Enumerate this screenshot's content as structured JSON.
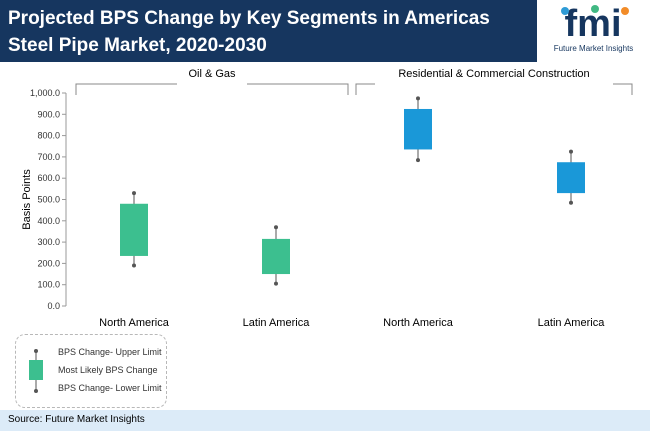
{
  "header": {
    "title": "Projected BPS Change by Key Segments in Americas Steel Pipe Market, 2020-2030"
  },
  "logo": {
    "letters": "fmi",
    "tagline": "Future Market Insights",
    "letter_colors": [
      "#2e9bd6",
      "#41b883",
      "#f28c28"
    ]
  },
  "colors": {
    "header_bg": "#16365f",
    "footer_bg": "#dcebf8",
    "oil_gas_box": "#3cbf8f",
    "residential_box": "#1a98d8",
    "whisker": "#555555"
  },
  "chart_data": {
    "type": "box",
    "ylabel": "Basis Points",
    "ylim": [
      0,
      1000
    ],
    "yticks": [
      "0.0",
      "100.0",
      "200.0",
      "300.0",
      "400.0",
      "500.0",
      "600.0",
      "700.0",
      "800.0",
      "900.0",
      "1,000.0"
    ],
    "grid": false,
    "groups": [
      {
        "name": "Oil & Gas",
        "color": "#3cbf8f",
        "items": [
          {
            "label": "North America",
            "upper": 530,
            "box_high": 480,
            "box_low": 235,
            "lower": 190
          },
          {
            "label": "Latin America",
            "upper": 370,
            "box_high": 315,
            "box_low": 150,
            "lower": 105
          }
        ]
      },
      {
        "name": "Residential & Commercial Construction",
        "color": "#1a98d8",
        "items": [
          {
            "label": "North America",
            "upper": 975,
            "box_high": 925,
            "box_low": 735,
            "lower": 685
          },
          {
            "label": "Latin America",
            "upper": 725,
            "box_high": 675,
            "box_low": 530,
            "lower": 485
          }
        ]
      }
    ]
  },
  "legend": {
    "upper": "BPS Change- Upper Limit",
    "likely": "Most Likely BPS Change",
    "lower": "BPS Change- Lower Limit"
  },
  "footer": {
    "source": "Source: Future Market Insights"
  }
}
